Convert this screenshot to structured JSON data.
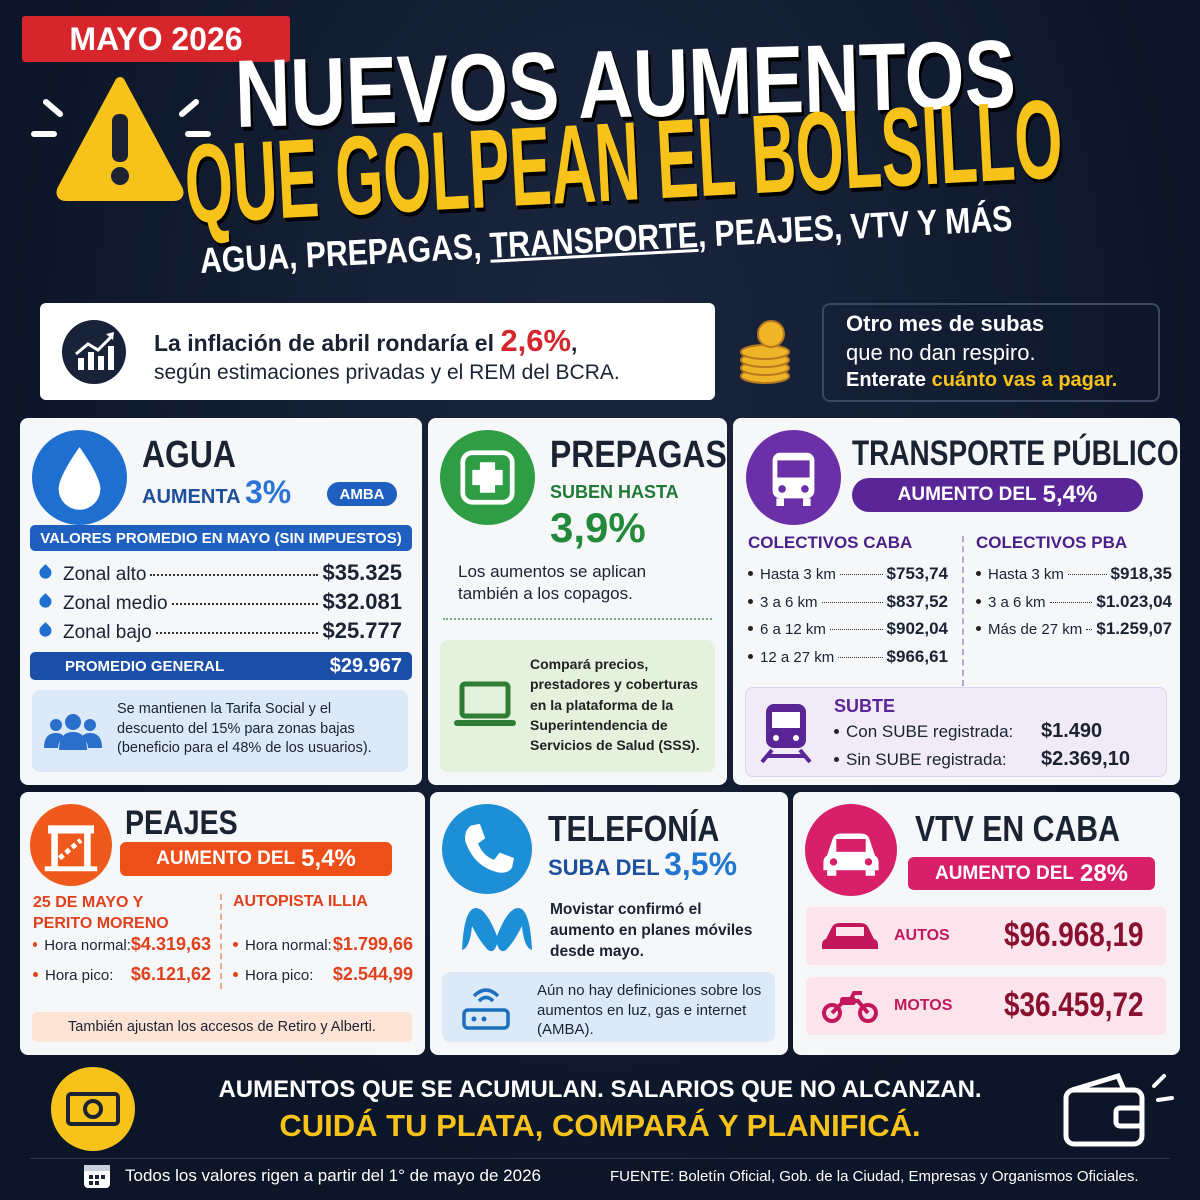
{
  "header": {
    "badge": "MAYO 2026",
    "title_line1": "NUEVOS AUMENTOS",
    "title_line2": "QUE GOLPEAN EL BOLSILLO",
    "subtitle_before": "AGUA, PREPAGAS, ",
    "subtitle_underlined": "TRANSPORTE",
    "subtitle_after": ", PEAJES, VTV Y MÁS"
  },
  "inflation": {
    "text_before": "La inflación de abril rondaría el ",
    "value": "2,6%",
    "text_after": ",",
    "line2": "según estimaciones privadas y el REM del BCRA."
  },
  "promo": {
    "line1": "Otro mes de subas",
    "line2": "que no dan respiro.",
    "line3_before": "Enterate ",
    "line3_highlight": "cuánto vas a pagar."
  },
  "agua": {
    "title": "AGUA",
    "subtitle": "AUMENTA",
    "percent": "3%",
    "tag": "AMBA",
    "table_header": "VALORES PROMEDIO EN MAYO (SIN IMPUESTOS)",
    "rows": [
      {
        "label": "Zonal alto",
        "value": "$35.325"
      },
      {
        "label": "Zonal medio",
        "value": "$32.081"
      },
      {
        "label": "Zonal bajo",
        "value": "$25.777"
      }
    ],
    "average_label": "PROMEDIO GENERAL",
    "average_value": "$29.967",
    "note": "Se mantienen la Tarifa Social y el descuento del 15% para zonas bajas (beneficio para el 48% de los usuarios)."
  },
  "prepagas": {
    "title": "PREPAGAS",
    "subtitle": "SUBEN HASTA",
    "percent": "3,9%",
    "note": "Los aumentos se aplican también a los copagos.",
    "tip": "Compará precios, prestadores y coberturas en la plataforma de la Superintendencia de Servicios de Salud (SSS)."
  },
  "transporte": {
    "title": "TRANSPORTE PÚBLICO",
    "banner": "AUMENTO DEL",
    "percent": "5,4%",
    "groups": [
      {
        "title": "COLECTIVOS CABA",
        "rows": [
          {
            "label": "Hasta 3 km",
            "value": "$753,74"
          },
          {
            "label": "3 a 6 km",
            "value": "$837,52"
          },
          {
            "label": "6 a 12 km",
            "value": "$902,04"
          },
          {
            "label": "12 a 27 km",
            "value": "$966,61"
          }
        ]
      },
      {
        "title": "COLECTIVOS PBA",
        "rows": [
          {
            "label": "Hasta 3 km",
            "value": "$918,35"
          },
          {
            "label": "3 a 6 km",
            "value": "$1.023,04"
          },
          {
            "label": "Más de 27 km",
            "value": "$1.259,07"
          }
        ]
      }
    ],
    "subte": {
      "title": "SUBTE",
      "rows": [
        {
          "label": "Con SUBE registrada:",
          "value": "$1.490"
        },
        {
          "label": "Sin SUBE registrada:",
          "value": "$2.369,10"
        }
      ]
    }
  },
  "peajes": {
    "title": "PEAJES",
    "banner": "AUMENTO DEL",
    "percent": "5,4%",
    "groups": [
      {
        "title": "25 DE MAYO Y PERITO MORENO",
        "rows": [
          {
            "label": "Hora normal:",
            "value": "$4.319,63"
          },
          {
            "label": "Hora pico:",
            "value": "$6.121,62"
          }
        ]
      },
      {
        "title": "AUTOPISTA ILLIA",
        "rows": [
          {
            "label": "Hora normal:",
            "value": "$1.799,66"
          },
          {
            "label": "Hora pico:",
            "value": "$2.544,99"
          }
        ]
      }
    ],
    "note": "También ajustan los accesos de Retiro y Alberti."
  },
  "telefonia": {
    "title": "TELEFONÍA",
    "subtitle": "SUBA DEL",
    "percent": "3,5%",
    "movistar": "Movistar confirmó el aumento en planes móviles desde mayo.",
    "note": "Aún no hay definiciones sobre los aumentos en luz, gas e internet (AMBA)."
  },
  "vtv": {
    "title": "VTV EN CABA",
    "banner": "AUMENTO DEL",
    "percent": "28%",
    "rows": [
      {
        "label": "AUTOS",
        "value": "$96.968,19"
      },
      {
        "label": "MOTOS",
        "value": "$36.459,72"
      }
    ]
  },
  "footer": {
    "line1": "AUMENTOS QUE SE ACUMULAN. SALARIOS QUE NO ALCANZAN.",
    "line2": "CUIDÁ TU PLATA, COMPARÁ Y PLANIFICÁ.",
    "validity": "Todos los valores rigen a partir del 1° de mayo de 2026",
    "source": "FUENTE: Boletín Oficial, Gob. de la Ciudad, Empresas y Organismos Oficiales."
  }
}
